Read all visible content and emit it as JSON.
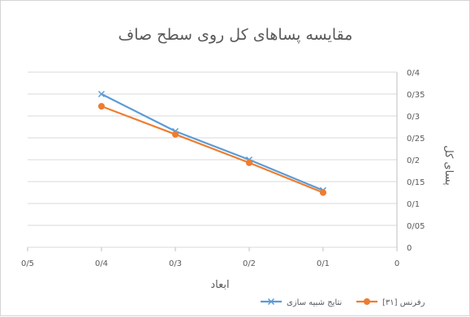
{
  "chart_data": {
    "type": "line",
    "title": "مقایسه پساهای کل روی سطح صاف",
    "xlabel": "ابعاد",
    "ylabel": "پسای کل",
    "x_axis_reversed": true,
    "y_axis_position": "right",
    "xlim": [
      0,
      0.5
    ],
    "ylim": [
      0,
      0.4
    ],
    "x_ticks": [
      {
        "value": 0,
        "label": "0"
      },
      {
        "value": 0.1,
        "label": "0/1"
      },
      {
        "value": 0.2,
        "label": "0/2"
      },
      {
        "value": 0.3,
        "label": "0/3"
      },
      {
        "value": 0.4,
        "label": "0/4"
      },
      {
        "value": 0.5,
        "label": "0/5"
      }
    ],
    "y_ticks": [
      {
        "value": 0,
        "label": "0"
      },
      {
        "value": 0.05,
        "label": "0/05"
      },
      {
        "value": 0.1,
        "label": "0/1"
      },
      {
        "value": 0.15,
        "label": "0/15"
      },
      {
        "value": 0.2,
        "label": "0/2"
      },
      {
        "value": 0.25,
        "label": "0/25"
      },
      {
        "value": 0.3,
        "label": "0/3"
      },
      {
        "value": 0.35,
        "label": "0/35"
      },
      {
        "value": 0.4,
        "label": "0/4"
      }
    ],
    "grid": "horizontal",
    "legend_position": "bottom",
    "series": [
      {
        "name": "نتایج شبیه سازی",
        "color": "#5b9bd5",
        "marker": "x",
        "points": [
          {
            "x": 0.1,
            "y": 0.13
          },
          {
            "x": 0.2,
            "y": 0.2
          },
          {
            "x": 0.3,
            "y": 0.265
          },
          {
            "x": 0.4,
            "y": 0.35
          }
        ]
      },
      {
        "name": "رفرنس [۳۱]",
        "color": "#ed7d31",
        "marker": "circle",
        "points": [
          {
            "x": 0.1,
            "y": 0.125
          },
          {
            "x": 0.2,
            "y": 0.193
          },
          {
            "x": 0.3,
            "y": 0.258
          },
          {
            "x": 0.4,
            "y": 0.322
          }
        ]
      }
    ]
  }
}
